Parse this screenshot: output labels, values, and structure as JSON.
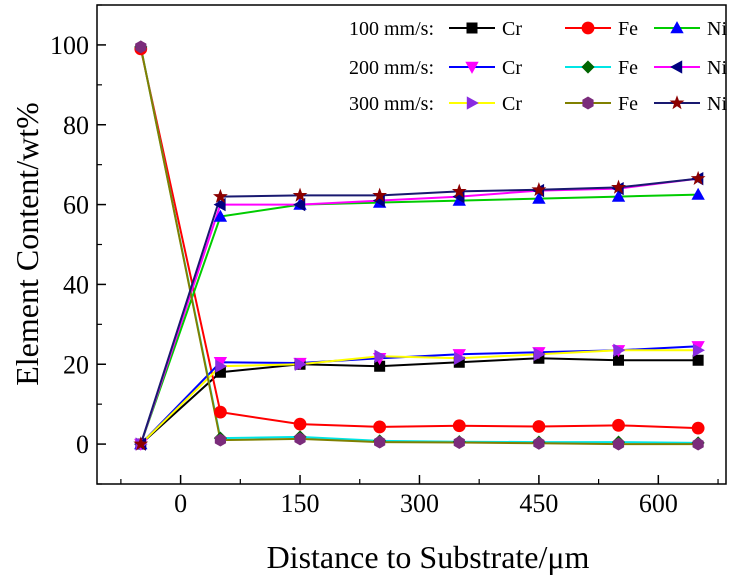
{
  "chart_data": {
    "type": "line",
    "title": "",
    "xlabel": "Distance to Substrate/μm",
    "ylabel": "Element Content/wt%",
    "xlim": [
      -105,
      685
    ],
    "ylim": [
      -10,
      110
    ],
    "xticks": [
      0,
      150,
      300,
      450,
      600
    ],
    "yticks": [
      0,
      20,
      40,
      60,
      80,
      100
    ],
    "x": [
      -50,
      50,
      150,
      250,
      350,
      450,
      550,
      650
    ],
    "legend_position": "top-right",
    "legend_groups": [
      "100 mm/s:",
      "200 mm/s:",
      "300 mm/s:"
    ],
    "series": [
      {
        "group": "100 mm/s:",
        "name": "Cr",
        "color": "#000000",
        "line": "#000000",
        "marker": "square",
        "values": [
          0,
          18,
          20,
          19.5,
          20.5,
          21.5,
          21,
          21
        ]
      },
      {
        "group": "100 mm/s:",
        "name": "Fe",
        "color": "#ff0000",
        "line": "#ff0000",
        "marker": "circle",
        "values": [
          99,
          8,
          5,
          4.3,
          4.6,
          4.4,
          4.7,
          4
        ]
      },
      {
        "group": "100 mm/s:",
        "name": "Ni",
        "color": "#0000ff",
        "line": "#00cc00",
        "marker": "triangle-up",
        "values": [
          0,
          57,
          60,
          60.5,
          61,
          61.5,
          62,
          62.5
        ]
      },
      {
        "group": "200 mm/s:",
        "name": "Cr",
        "color": "#ff00ff",
        "line": "#0000ff",
        "marker": "triangle-down",
        "values": [
          0,
          20.5,
          20.3,
          21.5,
          22.5,
          23,
          23.5,
          24.5
        ]
      },
      {
        "group": "200 mm/s:",
        "name": "Fe",
        "color": "#006400",
        "line": "#00e5e5",
        "marker": "diamond",
        "values": [
          99.5,
          1.5,
          1.8,
          0.8,
          0.6,
          0.5,
          0.5,
          0.3
        ]
      },
      {
        "group": "200 mm/s:",
        "name": "Ni",
        "color": "#000080",
        "line": "#ff00ff",
        "marker": "triangle-left",
        "values": [
          0,
          60,
          60,
          61,
          62,
          63.5,
          64,
          66.5
        ]
      },
      {
        "group": "300 mm/s:",
        "name": "Cr",
        "color": "#8a2be2",
        "line": "#ffff00",
        "marker": "triangle-right",
        "values": [
          0,
          19.5,
          20,
          22,
          21.5,
          22.5,
          23.5,
          23.5
        ]
      },
      {
        "group": "300 mm/s:",
        "name": "Fe",
        "color": "#7b2c7b",
        "line": "#808000",
        "marker": "hexagon",
        "values": [
          99.5,
          1,
          1.3,
          0.5,
          0.4,
          0.2,
          0,
          0
        ]
      },
      {
        "group": "300 mm/s:",
        "name": "Ni",
        "color": "#8b0000",
        "line": "#191970",
        "marker": "star",
        "values": [
          0,
          62,
          62.3,
          62.3,
          63.3,
          63.7,
          64.3,
          66.5
        ]
      }
    ]
  }
}
